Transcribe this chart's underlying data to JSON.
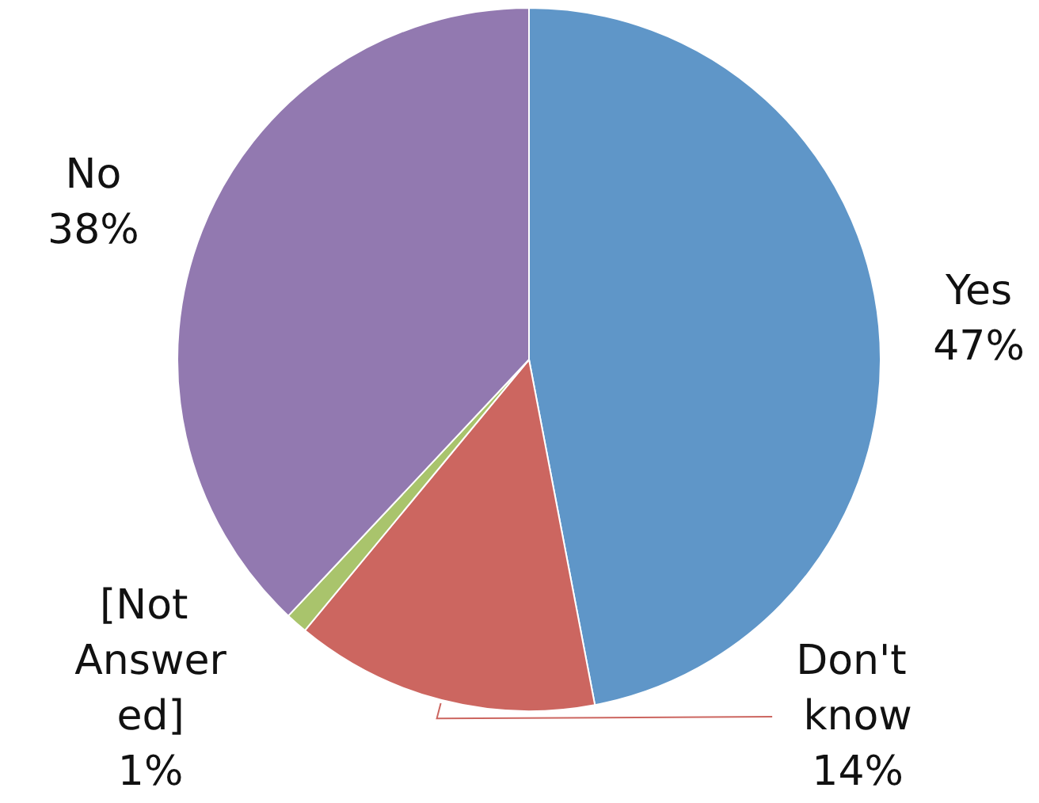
{
  "chart_data": {
    "type": "pie",
    "categories": [
      "Yes",
      "Don't know",
      "[Not Answered]",
      "No"
    ],
    "values": [
      47,
      14,
      1,
      38
    ],
    "colors": [
      "#5f96c8",
      "#cc6660",
      "#a9c46c",
      "#9279b0"
    ],
    "value_labels": [
      "47%",
      "14%",
      "1%",
      "38%"
    ]
  }
}
